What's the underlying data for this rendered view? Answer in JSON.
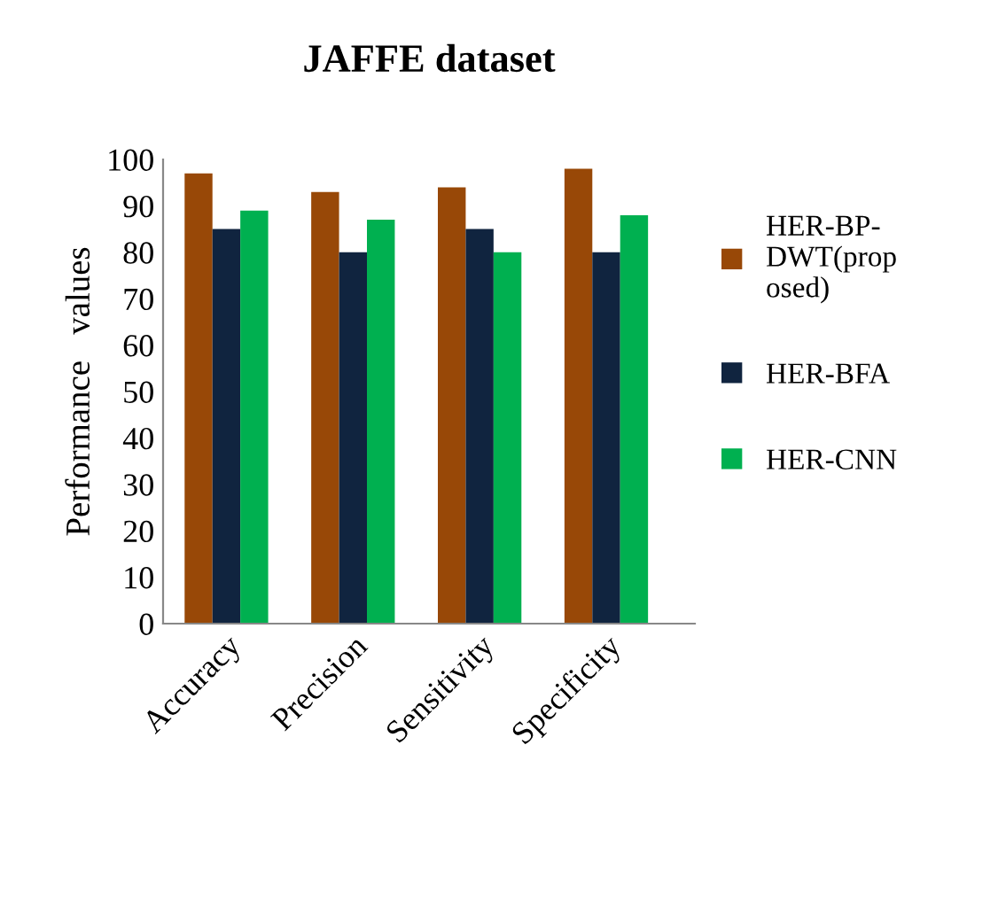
{
  "chart_data": {
    "type": "bar",
    "title": "JAFFE dataset",
    "ylabel": "Performance   values",
    "categories": [
      "Accuracy",
      "Precision",
      "Sensitivity",
      "Specificity"
    ],
    "series": [
      {
        "name": "HER-BP-\nDWT(prop\nosed)",
        "color": "#984807",
        "values": [
          97,
          93,
          94,
          98
        ]
      },
      {
        "name": "HER-BFA",
        "color": "#10243f",
        "values": [
          85,
          80,
          85,
          80
        ]
      },
      {
        "name": "HER-CNN",
        "color": "#00b050",
        "values": [
          89,
          87,
          80,
          88
        ]
      }
    ],
    "ylim": [
      0,
      100
    ],
    "yticks": [
      0,
      10,
      20,
      30,
      40,
      50,
      60,
      70,
      80,
      90,
      100
    ],
    "grid": false,
    "legend": "right"
  }
}
